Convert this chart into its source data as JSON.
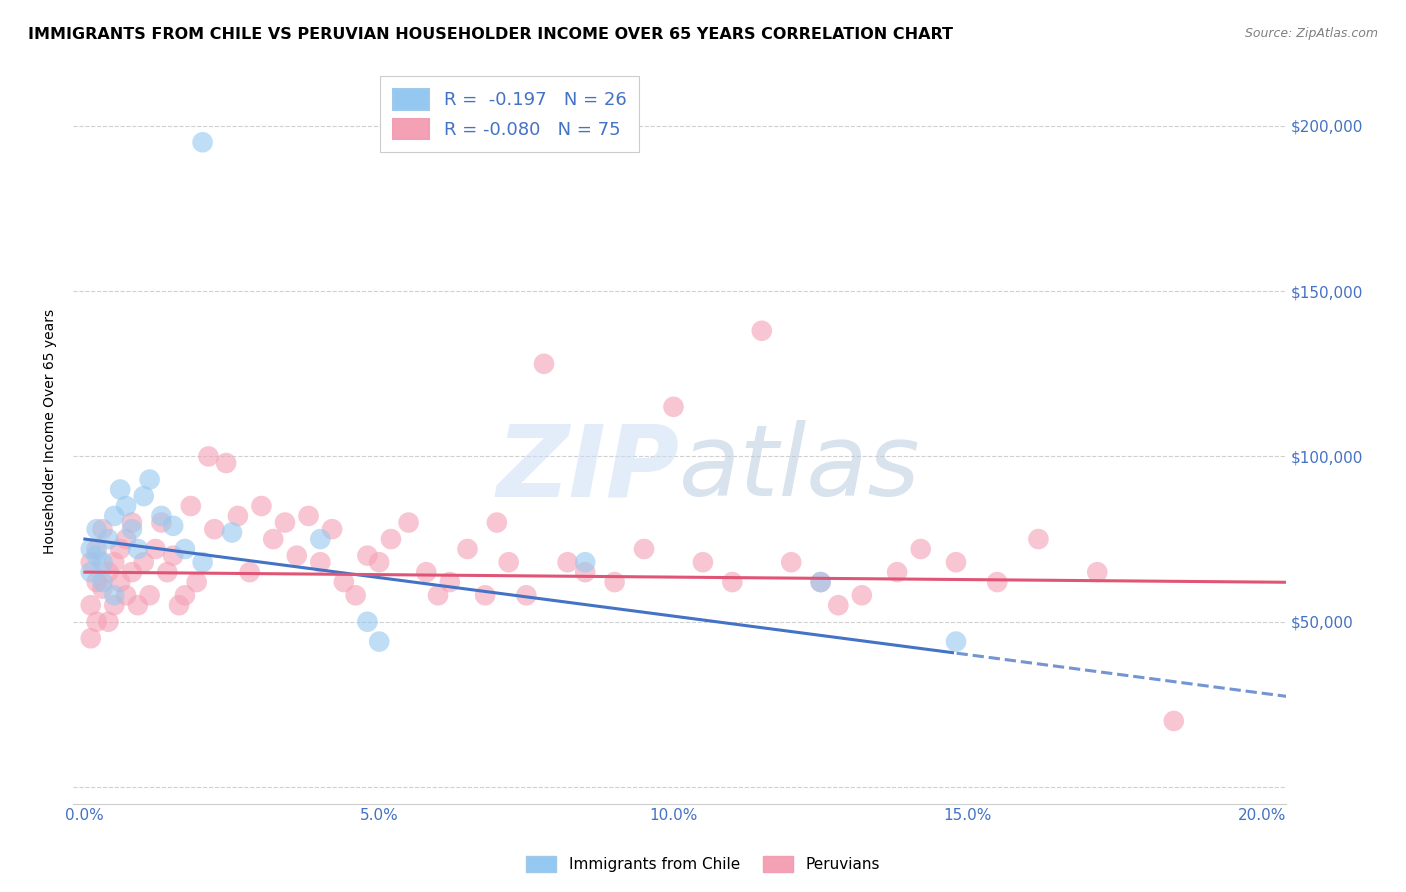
{
  "title": "IMMIGRANTS FROM CHILE VS PERUVIAN HOUSEHOLDER INCOME OVER 65 YEARS CORRELATION CHART",
  "source": "Source: ZipAtlas.com",
  "ylabel": "Householder Income Over 65 years",
  "xlim": [
    0.0,
    0.205
  ],
  "ylim": [
    0,
    220000
  ],
  "chile_R": -0.197,
  "chile_N": 26,
  "peru_R": -0.08,
  "peru_N": 75,
  "chile_color": "#95c8f0",
  "peru_color": "#f4a0b5",
  "chile_line_color": "#4472c4",
  "peru_line_color": "#e05575",
  "watermark_zip_color": "#ccddf0",
  "watermark_atlas_color": "#d0d8e8",
  "grid_color": "#d0d0d0",
  "background_color": "#ffffff",
  "x_tick_vals": [
    0.0,
    0.05,
    0.1,
    0.15,
    0.2
  ],
  "x_tick_labels": [
    "0.0%",
    "5.0%",
    "10.0%",
    "15.0%",
    "20.0%"
  ],
  "y_tick_vals": [
    0,
    50000,
    100000,
    150000,
    200000
  ],
  "y_tick_labels": [
    "",
    "$50,000",
    "$100,000",
    "$150,000",
    "$200,000"
  ],
  "chile_x": [
    0.001,
    0.001,
    0.002,
    0.002,
    0.003,
    0.003,
    0.004,
    0.005,
    0.005,
    0.006,
    0.007,
    0.008,
    0.009,
    0.01,
    0.011,
    0.013,
    0.015,
    0.017,
    0.02,
    0.025,
    0.04,
    0.048,
    0.05,
    0.085,
    0.125,
    0.148
  ],
  "chile_y": [
    72000,
    65000,
    78000,
    70000,
    68000,
    62000,
    75000,
    82000,
    58000,
    90000,
    85000,
    78000,
    72000,
    88000,
    93000,
    82000,
    79000,
    72000,
    68000,
    77000,
    75000,
    50000,
    44000,
    68000,
    62000,
    44000
  ],
  "peru_x": [
    0.001,
    0.001,
    0.001,
    0.002,
    0.002,
    0.002,
    0.003,
    0.003,
    0.004,
    0.004,
    0.005,
    0.005,
    0.006,
    0.006,
    0.007,
    0.007,
    0.008,
    0.008,
    0.009,
    0.01,
    0.011,
    0.012,
    0.013,
    0.014,
    0.015,
    0.016,
    0.017,
    0.018,
    0.019,
    0.021,
    0.022,
    0.024,
    0.026,
    0.028,
    0.03,
    0.032,
    0.034,
    0.036,
    0.038,
    0.04,
    0.042,
    0.044,
    0.046,
    0.048,
    0.05,
    0.052,
    0.055,
    0.058,
    0.06,
    0.062,
    0.065,
    0.068,
    0.07,
    0.072,
    0.075,
    0.078,
    0.082,
    0.085,
    0.09,
    0.095,
    0.1,
    0.105,
    0.11,
    0.115,
    0.12,
    0.125,
    0.128,
    0.132,
    0.138,
    0.142,
    0.148,
    0.155,
    0.162,
    0.172,
    0.185
  ],
  "peru_y": [
    68000,
    55000,
    45000,
    72000,
    62000,
    50000,
    78000,
    60000,
    65000,
    50000,
    68000,
    55000,
    72000,
    62000,
    75000,
    58000,
    80000,
    65000,
    55000,
    68000,
    58000,
    72000,
    80000,
    65000,
    70000,
    55000,
    58000,
    85000,
    62000,
    100000,
    78000,
    98000,
    82000,
    65000,
    85000,
    75000,
    80000,
    70000,
    82000,
    68000,
    78000,
    62000,
    58000,
    70000,
    68000,
    75000,
    80000,
    65000,
    58000,
    62000,
    72000,
    58000,
    80000,
    68000,
    58000,
    128000,
    68000,
    65000,
    62000,
    72000,
    115000,
    68000,
    62000,
    138000,
    68000,
    62000,
    55000,
    58000,
    65000,
    72000,
    68000,
    62000,
    75000,
    65000,
    20000
  ]
}
